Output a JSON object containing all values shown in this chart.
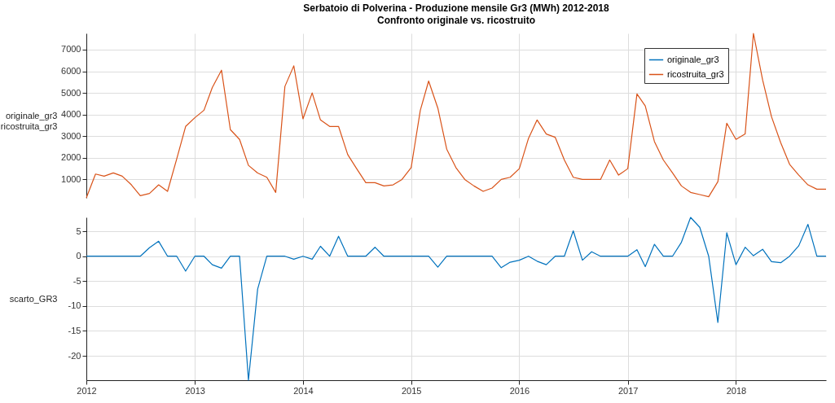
{
  "chart_data": [
    {
      "type": "line",
      "title": "Serbatoio di Polverina - Produzione mensile Gr3 (MWh) 2012-2018",
      "subtitle": "Confronto originale vs. ricostruito",
      "ylabel": "originale_gr3\nricostruita_gr3",
      "x": [
        "2012-01",
        "2012-02",
        "2012-03",
        "2012-04",
        "2012-05",
        "2012-06",
        "2012-07",
        "2012-08",
        "2012-09",
        "2012-10",
        "2012-11",
        "2012-12",
        "2013-01",
        "2013-02",
        "2013-03",
        "2013-04",
        "2013-05",
        "2013-06",
        "2013-07",
        "2013-08",
        "2013-09",
        "2013-10",
        "2013-11",
        "2013-12",
        "2014-01",
        "2014-02",
        "2014-03",
        "2014-04",
        "2014-05",
        "2014-06",
        "2014-07",
        "2014-08",
        "2014-09",
        "2014-10",
        "2014-11",
        "2014-12",
        "2015-01",
        "2015-02",
        "2015-03",
        "2015-04",
        "2015-05",
        "2015-06",
        "2015-07",
        "2015-08",
        "2015-09",
        "2015-10",
        "2015-11",
        "2015-12",
        "2016-01",
        "2016-02",
        "2016-03",
        "2016-04",
        "2016-05",
        "2016-06",
        "2016-07",
        "2016-08",
        "2016-09",
        "2016-10",
        "2016-11",
        "2016-12",
        "2017-01",
        "2017-02",
        "2017-03",
        "2017-04",
        "2017-05",
        "2017-06",
        "2017-07",
        "2017-08",
        "2017-09",
        "2017-10",
        "2017-11",
        "2017-12",
        "2018-01",
        "2018-02",
        "2018-03",
        "2018-04",
        "2018-05",
        "2018-06",
        "2018-07",
        "2018-08",
        "2018-09",
        "2018-10",
        "2018-11"
      ],
      "series": [
        {
          "name": "originale_gr3",
          "color": "#0072bd",
          "values": [
            null,
            null,
            null,
            null,
            null,
            null,
            null,
            null,
            null,
            null,
            null,
            null,
            null,
            null,
            null,
            null,
            null,
            null,
            null,
            null,
            null,
            null,
            null,
            null,
            null,
            null,
            null,
            null,
            null,
            null,
            null,
            null,
            null,
            null,
            null,
            null,
            null,
            null,
            null,
            null,
            null,
            null,
            null,
            null,
            null,
            null,
            null,
            null,
            null,
            null,
            null,
            null,
            null,
            null,
            null,
            null,
            null,
            null,
            null,
            null,
            null,
            null,
            null,
            null,
            null,
            null,
            null,
            null,
            null,
            null,
            null,
            null,
            null,
            null,
            null,
            null,
            null,
            null,
            null,
            null,
            null,
            null,
            null
          ]
        },
        {
          "name": "ricostruita_gr3",
          "color": "#d95319",
          "values": [
            150,
            1250,
            1150,
            1300,
            1150,
            750,
            250,
            350,
            750,
            450,
            1950,
            3450,
            3850,
            4200,
            5250,
            6050,
            3300,
            2850,
            1650,
            1300,
            1100,
            400,
            5300,
            6250,
            3800,
            5000,
            3750,
            3450,
            3450,
            2150,
            1500,
            850,
            850,
            700,
            750,
            1000,
            1550,
            4200,
            5550,
            4300,
            2400,
            1550,
            1000,
            700,
            450,
            600,
            1000,
            1100,
            1500,
            2900,
            3750,
            3100,
            2950,
            1900,
            1100,
            1000,
            1000,
            1000,
            1900,
            1200,
            1500,
            4950,
            4400,
            2750,
            1900,
            1300,
            700,
            400,
            300,
            200,
            900,
            3600,
            2850,
            3100,
            7750,
            5600,
            3900,
            2700,
            1700,
            1200,
            750,
            550,
            550
          ]
        }
      ],
      "xlim": [
        "2012-01",
        "2018-11"
      ],
      "xticks": [
        "2012",
        "2013",
        "2014",
        "2015",
        "2016",
        "2017",
        "2018"
      ],
      "ylim": [
        150,
        7750
      ],
      "yticks": [
        1000,
        2000,
        3000,
        4000,
        5000,
        6000,
        7000
      ],
      "grid": true,
      "legend": "top right",
      "tick_labels": "y"
    },
    {
      "type": "line",
      "ylabel": "scarto_GR3",
      "x": [
        "2012-01",
        "2012-02",
        "2012-03",
        "2012-04",
        "2012-05",
        "2012-06",
        "2012-07",
        "2012-08",
        "2012-09",
        "2012-10",
        "2012-11",
        "2012-12",
        "2013-01",
        "2013-02",
        "2013-03",
        "2013-04",
        "2013-05",
        "2013-06",
        "2013-07",
        "2013-08",
        "2013-09",
        "2013-10",
        "2013-11",
        "2013-12",
        "2014-01",
        "2014-02",
        "2014-03",
        "2014-04",
        "2014-05",
        "2014-06",
        "2014-07",
        "2014-08",
        "2014-09",
        "2014-10",
        "2014-11",
        "2014-12",
        "2015-01",
        "2015-02",
        "2015-03",
        "2015-04",
        "2015-05",
        "2015-06",
        "2015-07",
        "2015-08",
        "2015-09",
        "2015-10",
        "2015-11",
        "2015-12",
        "2016-01",
        "2016-02",
        "2016-03",
        "2016-04",
        "2016-05",
        "2016-06",
        "2016-07",
        "2016-08",
        "2016-09",
        "2016-10",
        "2016-11",
        "2016-12",
        "2017-01",
        "2017-02",
        "2017-03",
        "2017-04",
        "2017-05",
        "2017-06",
        "2017-07",
        "2017-08",
        "2017-09",
        "2017-10",
        "2017-11",
        "2017-12",
        "2018-01",
        "2018-02",
        "2018-03",
        "2018-04",
        "2018-05",
        "2018-06",
        "2018-07",
        "2018-08",
        "2018-09",
        "2018-10",
        "2018-11"
      ],
      "series": [
        {
          "color": "#0072bd",
          "values": [
            0,
            0,
            0,
            0,
            0,
            0,
            0,
            1.7,
            3.0,
            0,
            0,
            -3.0,
            0,
            0,
            -1.7,
            -2.4,
            0,
            0,
            -24.9,
            -6.6,
            0,
            0,
            0,
            -0.6,
            0,
            -0.6,
            2.0,
            0,
            4.0,
            0,
            0,
            0,
            1.8,
            0,
            0,
            0,
            0,
            0,
            0,
            -2.2,
            0,
            0,
            0,
            0,
            0,
            0,
            -2.3,
            -1.2,
            -0.8,
            0,
            -1.0,
            -1.7,
            0,
            0,
            5.1,
            -0.8,
            0.9,
            0,
            0,
            0,
            0,
            1.3,
            -2.1,
            2.4,
            0,
            0,
            2.8,
            7.8,
            5.8,
            0,
            -13.3,
            4.7,
            -1.7,
            1.8,
            0.1,
            1.4,
            -1.1,
            -1.3,
            0,
            2.1,
            6.4,
            0,
            0
          ]
        }
      ],
      "xlim": [
        "2012-01",
        "2018-11"
      ],
      "xticks": [
        "2012",
        "2013",
        "2014",
        "2015",
        "2016",
        "2017",
        "2018"
      ],
      "ylim": [
        -24.9,
        7.8
      ],
      "yticks": [
        -20,
        -15,
        -10,
        -5,
        0,
        5
      ],
      "grid": true
    }
  ]
}
